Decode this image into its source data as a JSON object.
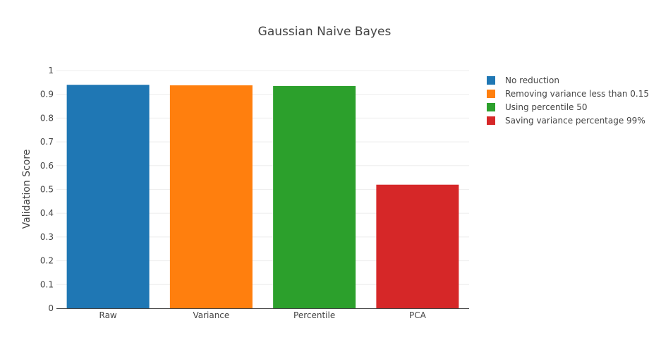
{
  "chart_data": {
    "type": "bar",
    "title": "Gaussian Naive Bayes",
    "xlabel": "",
    "ylabel": "Validation Score",
    "categories": [
      "Raw",
      "Variance",
      "Percentile",
      "PCA"
    ],
    "values": [
      0.94,
      0.938,
      0.935,
      0.52
    ],
    "ylim": [
      0,
      1
    ],
    "yticks": [
      "0",
      "0.1",
      "0.2",
      "0.3",
      "0.4",
      "0.5",
      "0.6",
      "0.7",
      "0.8",
      "0.9",
      "1"
    ],
    "grid": true,
    "legend_position": "top-right",
    "series": [
      {
        "name": "No reduction",
        "color": "#1f77b4"
      },
      {
        "name": "Removing variance less than 0.15",
        "color": "#ff7f0e"
      },
      {
        "name": "Using percentile 50",
        "color": "#2ca02c"
      },
      {
        "name": "Saving variance percentage 99%",
        "color": "#d62728"
      }
    ]
  }
}
